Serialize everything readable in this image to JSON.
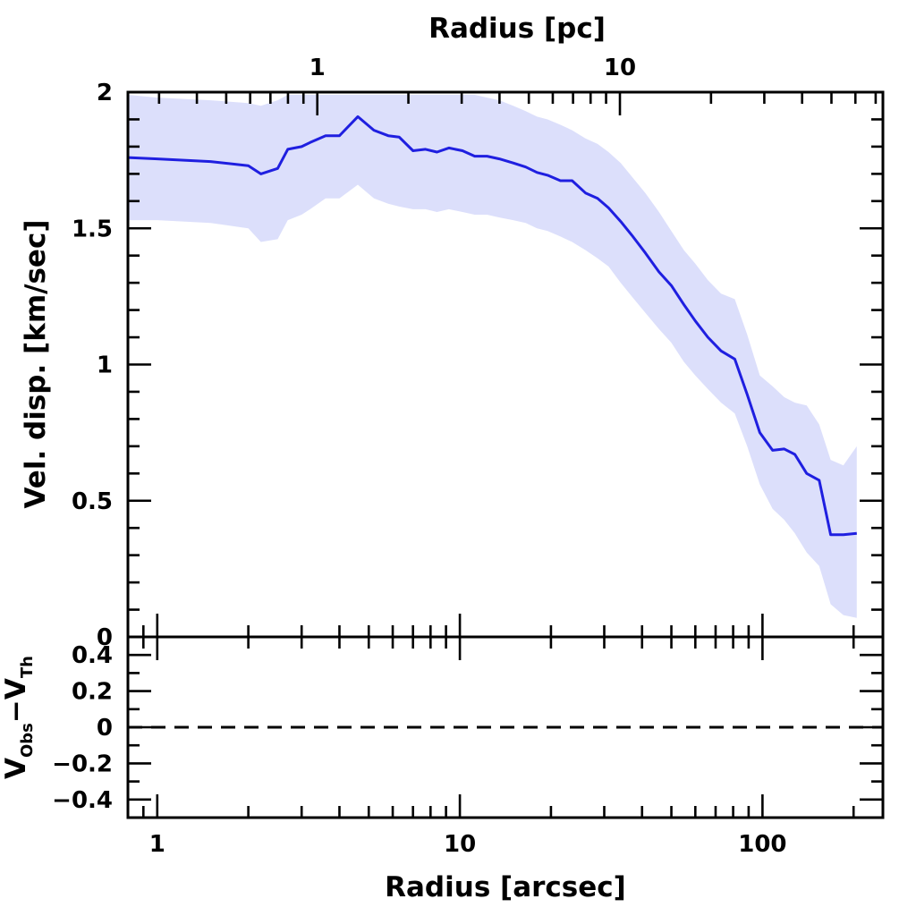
{
  "chart_data": [
    {
      "type": "line",
      "panel": "velocity-dispersion",
      "xscale": "log",
      "xlim": [
        0.8,
        250
      ],
      "xlabel": "Radius [arcsec]",
      "top_axis": {
        "label": "Radius [pc]",
        "ticks": [
          1,
          10
        ],
        "tick_labels": [
          "1",
          "10"
        ]
      },
      "ylabel": "Vel. disp. [km/sec]",
      "ylim": [
        0,
        2
      ],
      "yticks": [
        0,
        0.5,
        1,
        1.5,
        2
      ],
      "ytick_labels": [
        "0",
        "0.5",
        "1",
        "1.5",
        "2"
      ],
      "series": [
        {
          "name": "velocity dispersion",
          "color": "#1f1fe0",
          "band_color": "#dcdffb",
          "x": [
            0.8,
            1.0,
            1.5,
            2.0,
            2.2,
            2.5,
            2.7,
            3.0,
            3.2,
            3.6,
            4.0,
            4.6,
            5.2,
            5.8,
            6.3,
            7.0,
            7.7,
            8.4,
            9.2,
            10.2,
            11.2,
            12.3,
            13.5,
            15.0,
            16.5,
            18.0,
            19.5,
            21.5,
            23.5,
            26.0,
            28.5,
            31.0,
            34.0,
            37.0,
            41.0,
            45.5,
            50.0,
            55.0,
            60.0,
            66.0,
            73.0,
            81.0,
            89.0,
            98.0,
            108.0,
            118.0,
            128.0,
            140.0,
            154.0,
            168.0,
            185.0,
            205.0
          ],
          "y": [
            1.76,
            1.755,
            1.745,
            1.73,
            1.7,
            1.72,
            1.79,
            1.8,
            1.815,
            1.84,
            1.84,
            1.91,
            1.86,
            1.84,
            1.835,
            1.785,
            1.79,
            1.78,
            1.795,
            1.785,
            1.765,
            1.765,
            1.755,
            1.74,
            1.725,
            1.705,
            1.695,
            1.675,
            1.675,
            1.63,
            1.61,
            1.575,
            1.525,
            1.475,
            1.41,
            1.34,
            1.29,
            1.22,
            1.16,
            1.1,
            1.05,
            1.02,
            0.89,
            0.75,
            0.685,
            0.69,
            0.67,
            0.6,
            0.575,
            0.375,
            0.375,
            0.38
          ],
          "y_low": [
            1.53,
            1.53,
            1.52,
            1.5,
            1.45,
            1.46,
            1.53,
            1.55,
            1.57,
            1.61,
            1.61,
            1.66,
            1.61,
            1.59,
            1.58,
            1.57,
            1.57,
            1.56,
            1.57,
            1.56,
            1.55,
            1.55,
            1.54,
            1.53,
            1.52,
            1.5,
            1.49,
            1.47,
            1.45,
            1.42,
            1.39,
            1.36,
            1.3,
            1.25,
            1.19,
            1.13,
            1.08,
            1.01,
            0.96,
            0.91,
            0.86,
            0.82,
            0.7,
            0.56,
            0.47,
            0.43,
            0.38,
            0.31,
            0.26,
            0.12,
            0.08,
            0.07
          ],
          "y_high": [
            1.99,
            1.98,
            1.97,
            1.96,
            1.95,
            1.97,
            1.99,
            1.99,
            1.99,
            1.99,
            1.99,
            1.99,
            1.99,
            1.99,
            1.99,
            1.99,
            1.99,
            1.99,
            1.99,
            1.99,
            1.99,
            1.98,
            1.97,
            1.95,
            1.93,
            1.91,
            1.9,
            1.88,
            1.86,
            1.83,
            1.81,
            1.78,
            1.74,
            1.69,
            1.63,
            1.56,
            1.49,
            1.42,
            1.37,
            1.31,
            1.26,
            1.24,
            1.11,
            0.96,
            0.92,
            0.88,
            0.86,
            0.85,
            0.78,
            0.65,
            0.63,
            0.7
          ]
        }
      ]
    },
    {
      "type": "line",
      "panel": "residuals",
      "xscale": "log",
      "xlim": [
        0.8,
        250
      ],
      "xlabel": "Radius [arcsec]",
      "xticks": [
        1,
        10,
        100
      ],
      "xtick_labels": [
        "1",
        "10",
        "100"
      ],
      "ylabel_main": "V",
      "ylabel_sub1": "Obs",
      "ylabel_mid": "−V",
      "ylabel_sub2": "Th",
      "ylim": [
        -0.5,
        0.5
      ],
      "yticks": [
        -0.4,
        -0.2,
        0,
        0.2,
        0.4
      ],
      "ytick_labels": [
        "−0.4",
        "−0.2",
        "0",
        "0.2",
        "0.4"
      ],
      "reference_line": {
        "y": 0,
        "style": "dashed"
      }
    }
  ]
}
